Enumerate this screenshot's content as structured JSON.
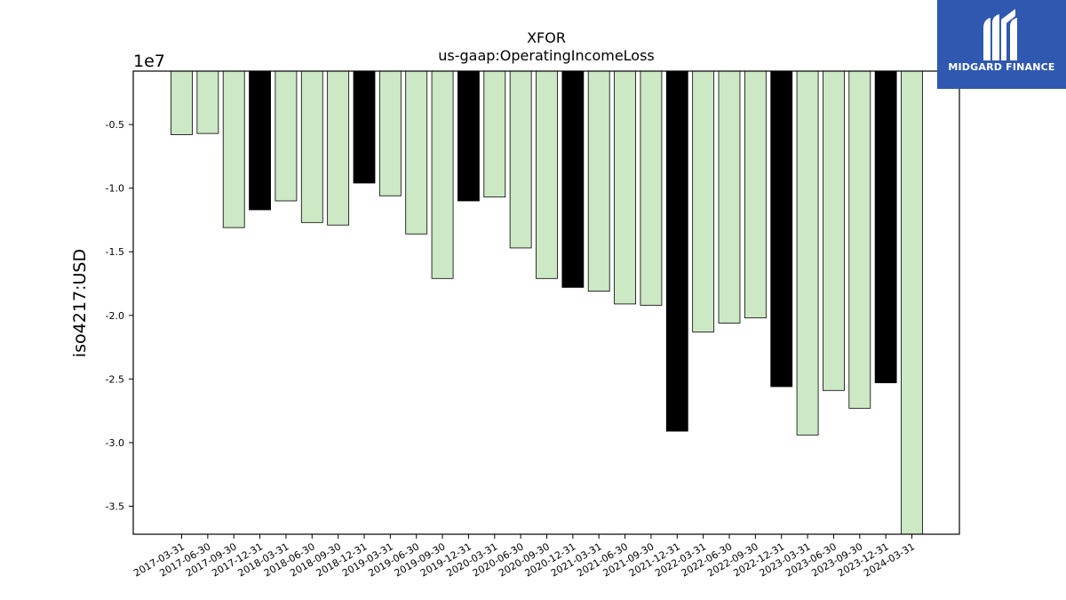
{
  "logo": {
    "text": "MIDGARD FINANCE",
    "background": "#2f58b0"
  },
  "chart_data": {
    "type": "bar",
    "title": "XFOR",
    "subtitle": "us-gaap:OperatingIncomeLoss",
    "ylabel": "iso4217:USD",
    "xlabel": "",
    "offset_label": "1e7",
    "ylim": [
      -37200000,
      -800000
    ],
    "yticks": [
      -5000000,
      -10000000,
      -15000000,
      -20000000,
      -25000000,
      -30000000,
      -35000000
    ],
    "ytick_labels": [
      "-0.5",
      "-1.0",
      "-1.5",
      "-2.0",
      "-2.5",
      "-3.0",
      "-3.5"
    ],
    "grid": false,
    "categories": [
      "2017-03-31",
      "2017-06-30",
      "2017-09-30",
      "2017-12-31",
      "2018-03-31",
      "2018-06-30",
      "2018-09-30",
      "2018-12-31",
      "2019-03-31",
      "2019-06-30",
      "2019-09-30",
      "2019-12-31",
      "2020-03-31",
      "2020-06-30",
      "2020-09-30",
      "2020-12-31",
      "2021-03-31",
      "2021-06-30",
      "2021-09-30",
      "2021-12-31",
      "2022-03-31",
      "2022-06-30",
      "2022-09-30",
      "2022-12-31",
      "2023-03-31",
      "2023-06-30",
      "2023-09-30",
      "2023-12-31",
      "2024-03-31"
    ],
    "values": [
      -5800000,
      -5700000,
      -13100000,
      -11700000,
      -11000000,
      -12700000,
      -12900000,
      -9600000,
      -10600000,
      -13600000,
      -17100000,
      -11000000,
      -10700000,
      -14700000,
      -17100000,
      -17800000,
      -18100000,
      -19100000,
      -19200000,
      -29100000,
      -21300000,
      -20600000,
      -20200000,
      -25600000,
      -29400000,
      -25900000,
      -27300000,
      -25300000,
      -37200000
    ],
    "bar_colors": [
      "#cce8c4",
      "#cce8c4",
      "#cce8c4",
      "#000000",
      "#cce8c4",
      "#cce8c4",
      "#cce8c4",
      "#000000",
      "#cce8c4",
      "#cce8c4",
      "#cce8c4",
      "#000000",
      "#cce8c4",
      "#cce8c4",
      "#cce8c4",
      "#000000",
      "#cce8c4",
      "#cce8c4",
      "#cce8c4",
      "#000000",
      "#cce8c4",
      "#cce8c4",
      "#cce8c4",
      "#000000",
      "#cce8c4",
      "#cce8c4",
      "#cce8c4",
      "#000000",
      "#cce8c4"
    ]
  }
}
